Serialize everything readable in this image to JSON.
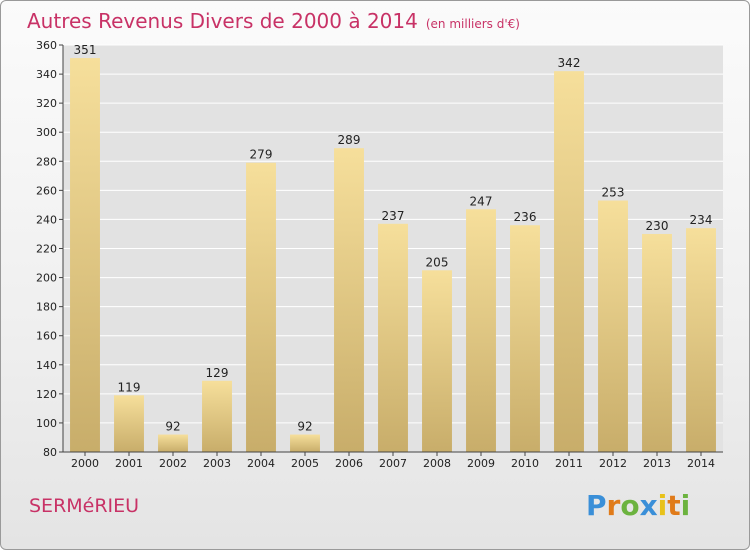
{
  "title": "Autres Revenus Divers de 2000 à 2014",
  "subtitle": "(en milliers d'€)",
  "commune": "SERMéRIEU",
  "logo": {
    "letters": [
      {
        "ch": "P",
        "color": "#3a8fd8"
      },
      {
        "ch": "r",
        "color": "#e07b1a"
      },
      {
        "ch": "o",
        "color": "#6cb33f"
      },
      {
        "ch": "x",
        "color": "#3a8fd8"
      },
      {
        "ch": "i",
        "color": "#e8c21a"
      },
      {
        "ch": "t",
        "color": "#e07b1a"
      },
      {
        "ch": "i",
        "color": "#6cb33f"
      }
    ]
  },
  "colors": {
    "accent": "#c83266",
    "bar_top": "#f6df9b",
    "bar_bottom": "#c8ad6a"
  },
  "chart_data": {
    "type": "bar",
    "title": "Autres Revenus Divers de 2000 à 2014",
    "subtitle": "(en milliers d'€)",
    "categories": [
      "2000",
      "2001",
      "2002",
      "2003",
      "2004",
      "2005",
      "2006",
      "2007",
      "2008",
      "2009",
      "2010",
      "2011",
      "2012",
      "2013",
      "2014"
    ],
    "values": [
      351,
      119,
      92,
      129,
      279,
      92,
      289,
      237,
      205,
      247,
      236,
      342,
      253,
      230,
      234
    ],
    "ylim": [
      80,
      360
    ],
    "yticks": [
      80,
      100,
      120,
      140,
      160,
      180,
      200,
      220,
      240,
      260,
      280,
      300,
      320,
      340,
      360
    ],
    "grid": true,
    "legend": "none"
  }
}
